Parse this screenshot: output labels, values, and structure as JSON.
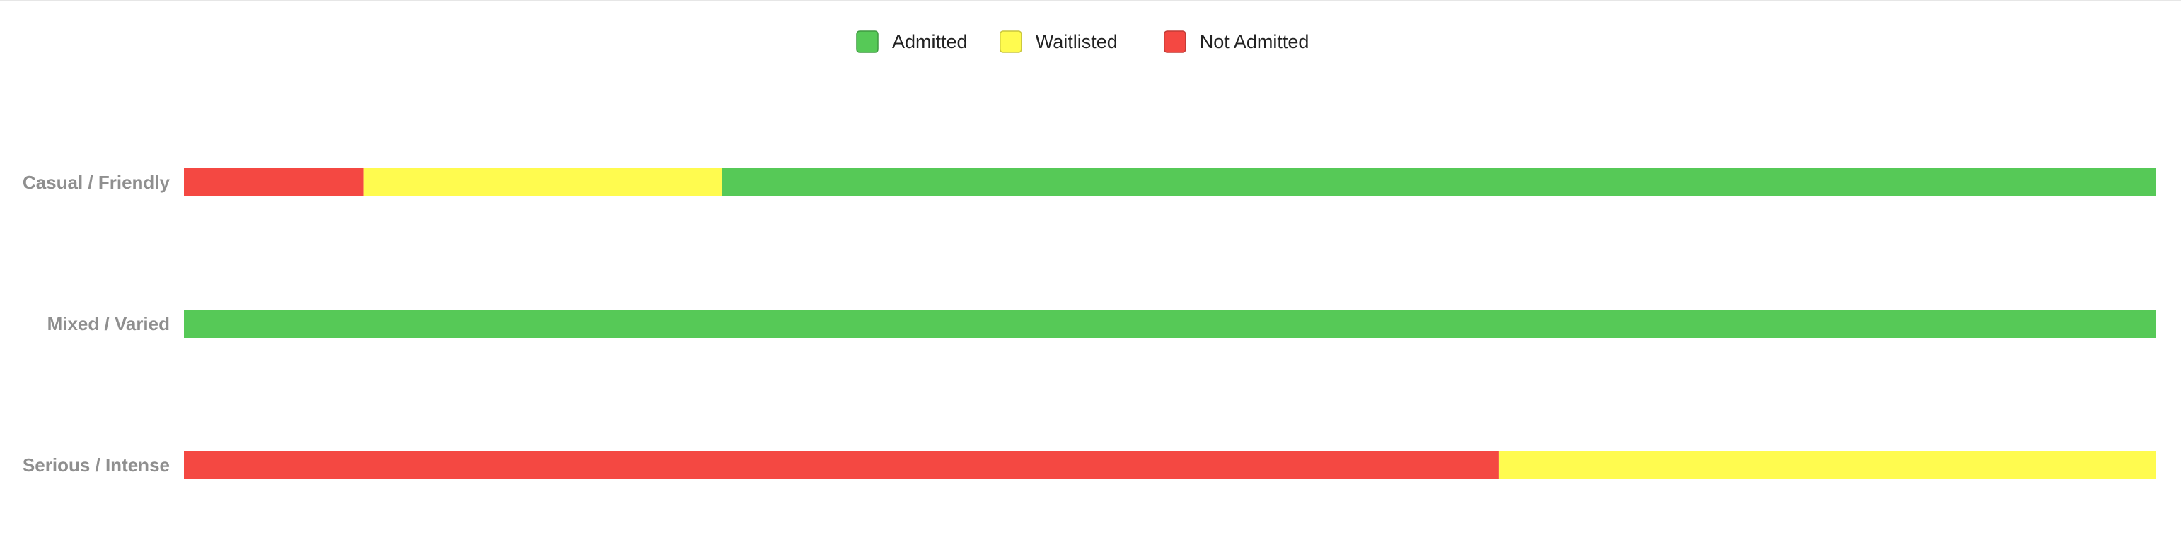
{
  "chart_data": {
    "type": "bar",
    "orientation": "horizontal",
    "stacked": true,
    "normalized": true,
    "categories": [
      "Casual / Friendly",
      "Mixed / Varied",
      "Serious / Intense"
    ],
    "series": [
      {
        "name": "Not Admitted",
        "color": "#f44842",
        "border": "#c23a35",
        "values": [
          0.091,
          0.0,
          0.667
        ]
      },
      {
        "name": "Waitlisted",
        "color": "#fffb4f",
        "border": "#c9c63d",
        "values": [
          0.182,
          0.0,
          0.333
        ]
      },
      {
        "name": "Admitted",
        "color": "#56c957",
        "border": "#3e9a40",
        "values": [
          0.727,
          1.0,
          0.0
        ]
      }
    ],
    "legend_order": [
      "Admitted",
      "Waitlisted",
      "Not Admitted"
    ],
    "legend_position": "top-center",
    "grid": false,
    "title": "",
    "xlabel": "",
    "ylabel": ""
  }
}
